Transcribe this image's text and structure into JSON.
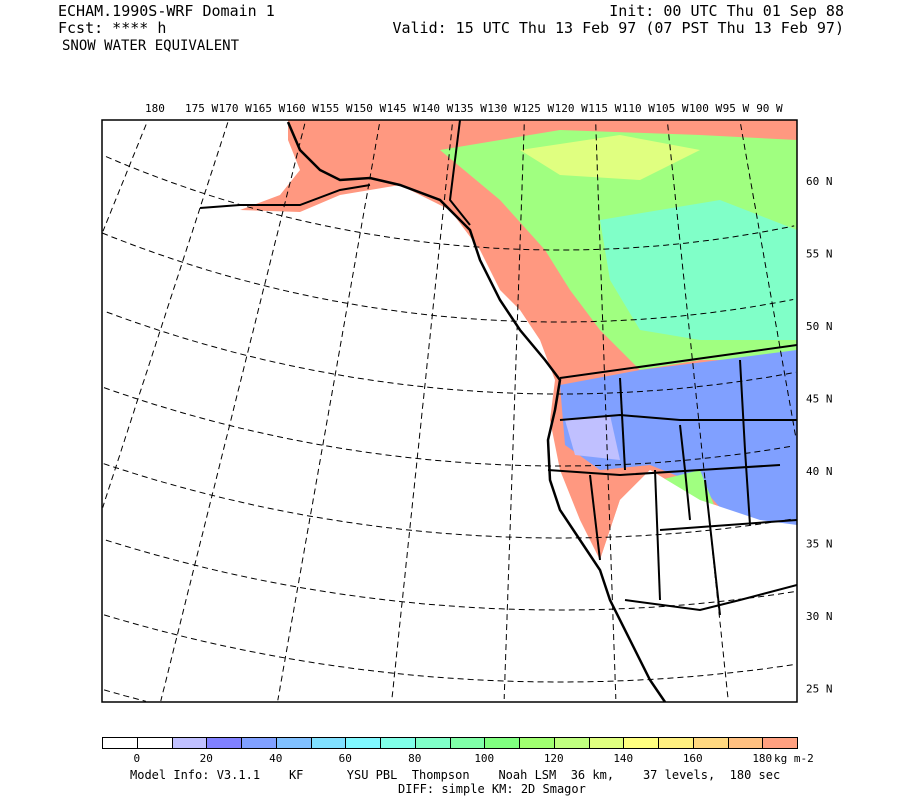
{
  "header": {
    "title": "ECHAM.1990S-WRF Domain 1",
    "fcst": "Fcst: **** h",
    "field": "SNOW WATER EQUIVALENT",
    "init": "Init: 00 UTC Thu 01 Sep 88",
    "valid": "Valid: 15 UTC Thu 13 Feb 97 (07 PST Thu 13 Feb 97)"
  },
  "map": {
    "lon_labels": [
      "180",
      "175 W",
      "170 W",
      "165 W",
      "160 W",
      "155 W",
      "150 W",
      "145 W",
      "140 W",
      "135 W",
      "130 W",
      "125 W",
      "120 W",
      "115 W",
      "110 W",
      "105 W",
      "100 W",
      "95 W",
      "90 W"
    ],
    "lat_labels": [
      "60 N",
      "55 N",
      "50 N",
      "45 N",
      "40 N",
      "35 N",
      "30 N",
      "25 N"
    ],
    "colors": {
      "high_swe": "#ff9880",
      "mid_swe": "#a0ff80",
      "low_swe": "#80a0ff"
    }
  },
  "colorbar": {
    "colors": [
      "#ffffff",
      "#ffffff",
      "#c0c0ff",
      "#8080ff",
      "#80a0ff",
      "#80c0ff",
      "#80e0ff",
      "#80f8ff",
      "#80ffe8",
      "#80ffc8",
      "#80ffa8",
      "#80ff80",
      "#a0ff70",
      "#c0ff80",
      "#e0ff80",
      "#ffff80",
      "#fff080",
      "#ffd880",
      "#ffc080",
      "#ffa080"
    ],
    "labels": [
      "0",
      "20",
      "40",
      "60",
      "80",
      "100",
      "120",
      "140",
      "160",
      "180"
    ],
    "units": "kg m-2"
  },
  "footer": {
    "model_info": "Model Info: V3.1.1    KF      YSU PBL  Thompson    Noah LSM  36 km,    37 levels,  180 sec",
    "diff": "DIFF: simple KM: 2D Smagor"
  }
}
